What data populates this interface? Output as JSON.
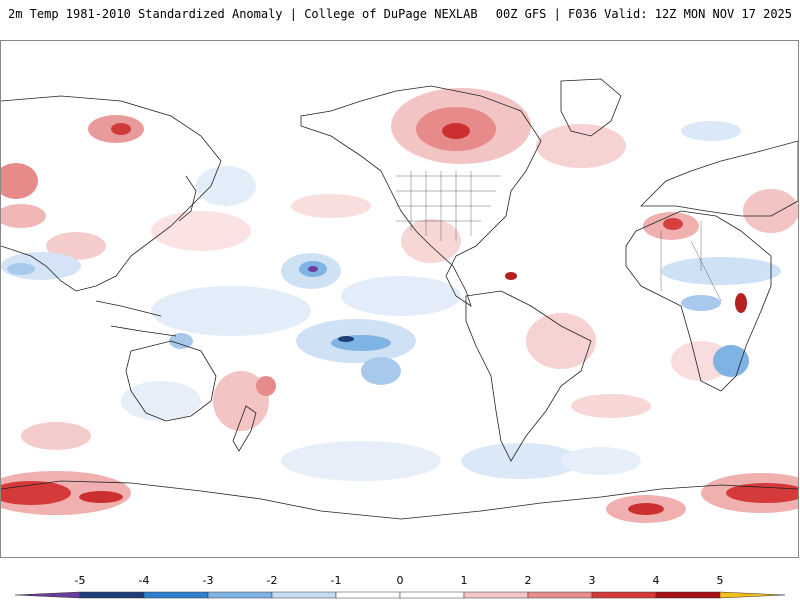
{
  "header": {
    "title_left": "2m Temp 1981-2010 Standardized Anomaly | College of DuPage NEXLAB",
    "title_right": "00Z GFS | F036 Valid: 12Z MON NOV 17 2025"
  },
  "map": {
    "projection": "global cylindrical (Pacific-centered)",
    "variable": "2m temperature standardized anomaly"
  },
  "colorbar": {
    "ticks": [
      "-5",
      "-4",
      "-3",
      "-2",
      "-1",
      "0",
      "1",
      "2",
      "3",
      "4",
      "5"
    ],
    "colors": [
      "#6a3d9a",
      "#1f3e7a",
      "#2f7fcf",
      "#7fb3e3",
      "#c6dcf2",
      "#ffffff",
      "#ffffff",
      "#f5c6c6",
      "#e88d8d",
      "#d43a3a",
      "#a50f15",
      "#f2c01e"
    ],
    "left_end_color": "#6a3d9a",
    "right_end_color": "#f2c01e"
  }
}
